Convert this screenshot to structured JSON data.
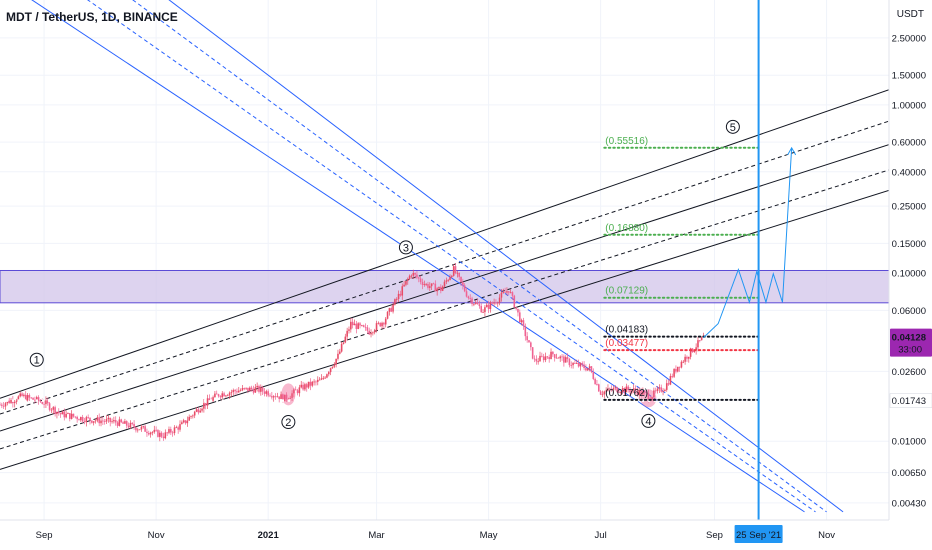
{
  "header": {
    "title": "MDT / TetherUS, 1D, BINANCE",
    "axis_unit": "USDT"
  },
  "colors": {
    "channel_black": "#131722",
    "channel_blue": "#2962ff",
    "zone_fill": "#d1c4e9",
    "zone_border": "#5b4bd6",
    "candle_up": "#e84b66",
    "candle_down": "#f06292",
    "green_level": "#4caf50",
    "red_level": "#f23645",
    "vertical_line": "#2196f3",
    "price_badge": "#9c27b0"
  },
  "chart_data": {
    "type": "candlestick",
    "scale": "log",
    "ylim": [
      0.0034,
      4.2
    ],
    "y_ticks": [
      "2.50000",
      "1.50000",
      "1.00000",
      "0.60000",
      "0.40000",
      "0.25000",
      "0.15000",
      "0.10000",
      "0.06000",
      "0.02600",
      "0.01000",
      "0.00650",
      "0.00430"
    ],
    "y_tick_values": [
      2.5,
      1.5,
      1.0,
      0.6,
      0.4,
      0.25,
      0.15,
      0.1,
      0.06,
      0.026,
      0.01,
      0.0065,
      0.0043
    ],
    "x_ticks": [
      "Sep",
      "Nov",
      "2021",
      "Mar",
      "May",
      "Jul",
      "Sep",
      "Nov"
    ],
    "x_tick_dates": [
      "2020-09-01",
      "2020-11-01",
      "2021-01-01",
      "2021-03-01",
      "2021-05-01",
      "2021-07-01",
      "2021-09-01",
      "2021-11-01"
    ],
    "xlim": [
      "2020-08-08",
      "2021-12-05"
    ],
    "price_path": [
      [
        "2020-08-08",
        0.0165
      ],
      [
        "2020-08-20",
        0.0185
      ],
      [
        "2020-09-01",
        0.017
      ],
      [
        "2020-09-10",
        0.0145
      ],
      [
        "2020-09-25",
        0.0135
      ],
      [
        "2020-10-10",
        0.013
      ],
      [
        "2020-10-25",
        0.0118
      ],
      [
        "2020-11-05",
        0.0108
      ],
      [
        "2020-11-15",
        0.0125
      ],
      [
        "2020-11-25",
        0.016
      ],
      [
        "2020-12-05",
        0.019
      ],
      [
        "2020-12-15",
        0.02
      ],
      [
        "2020-12-25",
        0.0205
      ],
      [
        "2021-01-01",
        0.0195
      ],
      [
        "2021-01-10",
        0.018
      ],
      [
        "2021-01-20",
        0.021
      ],
      [
        "2021-01-30",
        0.023
      ],
      [
        "2021-02-08",
        0.032
      ],
      [
        "2021-02-15",
        0.05
      ],
      [
        "2021-02-25",
        0.045
      ],
      [
        "2021-03-05",
        0.052
      ],
      [
        "2021-03-12",
        0.07
      ],
      [
        "2021-03-20",
        0.1
      ],
      [
        "2021-03-28",
        0.085
      ],
      [
        "2021-04-05",
        0.08
      ],
      [
        "2021-04-12",
        0.105
      ],
      [
        "2021-04-20",
        0.072
      ],
      [
        "2021-04-28",
        0.06
      ],
      [
        "2021-05-06",
        0.07
      ],
      [
        "2021-05-12",
        0.08
      ],
      [
        "2021-05-19",
        0.05
      ],
      [
        "2021-05-26",
        0.03
      ],
      [
        "2021-06-05",
        0.033
      ],
      [
        "2021-06-15",
        0.029
      ],
      [
        "2021-06-25",
        0.027
      ],
      [
        "2021-07-01",
        0.0195
      ],
      [
        "2021-07-10",
        0.0205
      ],
      [
        "2021-07-20",
        0.02
      ],
      [
        "2021-07-28",
        0.0185
      ],
      [
        "2021-08-05",
        0.021
      ],
      [
        "2021-08-12",
        0.028
      ],
      [
        "2021-08-20",
        0.035
      ],
      [
        "2021-08-26",
        0.0413
      ]
    ],
    "wave_labels": [
      {
        "label": "1",
        "date": "2020-08-28",
        "price": 0.0305
      },
      {
        "label": "2",
        "date": "2021-01-12",
        "price": 0.013
      },
      {
        "label": "3",
        "date": "2021-03-17",
        "price": 0.142
      },
      {
        "label": "4",
        "date": "2021-07-27",
        "price": 0.0132
      },
      {
        "label": "5",
        "date": "2021-09-11",
        "price": 0.74
      }
    ],
    "levels": [
      {
        "label": "(0.55516)",
        "value": 0.55516,
        "color": "#4caf50",
        "from": "2021-07-03",
        "to": "2021-09-25"
      },
      {
        "label": "(0.16880)",
        "value": 0.1688,
        "color": "#4caf50",
        "from": "2021-07-03",
        "to": "2021-09-25"
      },
      {
        "label": "(0.07129)",
        "value": 0.07129,
        "color": "#4caf50",
        "from": "2021-07-03",
        "to": "2021-09-25"
      },
      {
        "label": "(0.04183)",
        "value": 0.04183,
        "color": "#131722",
        "from": "2021-07-03",
        "to": "2021-09-25"
      },
      {
        "label": "(0.03477)",
        "value": 0.03477,
        "color": "#f23645",
        "from": "2021-07-03",
        "to": "2021-09-25"
      },
      {
        "label": "(0.01762)",
        "value": 0.01762,
        "color": "#131722",
        "from": "2021-07-03",
        "to": "2021-09-25"
      }
    ],
    "support_level": 0.01743,
    "support_label": "0.01743",
    "resistance_zone": [
      0.0665,
      0.1035
    ],
    "current_price_label": "0.04128",
    "countdown_label": "33:00",
    "vertical_marker": {
      "date": "2021-09-25",
      "label": "25 Sep '21"
    },
    "ascending_channel": [
      [
        [
          "2020-08-08",
          0.018
        ],
        [
          "2021-12-05",
          1.23
        ]
      ],
      [
        [
          "2020-08-08",
          0.0145
        ],
        [
          "2021-12-05",
          0.8
        ]
      ],
      [
        [
          "2020-08-08",
          0.0115
        ],
        [
          "2021-12-05",
          0.58
        ]
      ],
      [
        [
          "2020-08-08",
          0.009
        ],
        [
          "2021-12-05",
          0.41
        ]
      ],
      [
        [
          "2020-08-08",
          0.0068
        ],
        [
          "2021-12-05",
          0.31
        ]
      ]
    ],
    "descending_channel": [
      [
        [
          "2020-08-15",
          5.0
        ],
        [
          "2021-10-20",
          0.0038
        ]
      ],
      [
        [
          "2020-09-15",
          5.0
        ],
        [
          "2021-10-26",
          0.0038
        ]
      ],
      [
        [
          "2020-10-10",
          5.0
        ],
        [
          "2021-11-01",
          0.0038
        ]
      ],
      [
        [
          "2020-10-30",
          5.0
        ],
        [
          "2021-11-10",
          0.0038
        ]
      ]
    ],
    "projection": [
      [
        "2021-08-26",
        0.0413
      ],
      [
        "2021-09-03",
        0.05
      ],
      [
        "2021-09-14",
        0.105
      ],
      [
        "2021-09-20",
        0.067
      ],
      [
        "2021-09-24",
        0.102
      ],
      [
        "2021-09-29",
        0.067
      ],
      [
        "2021-10-03",
        0.099
      ],
      [
        "2021-10-08",
        0.067
      ],
      [
        "2021-10-13",
        0.555
      ]
    ]
  }
}
